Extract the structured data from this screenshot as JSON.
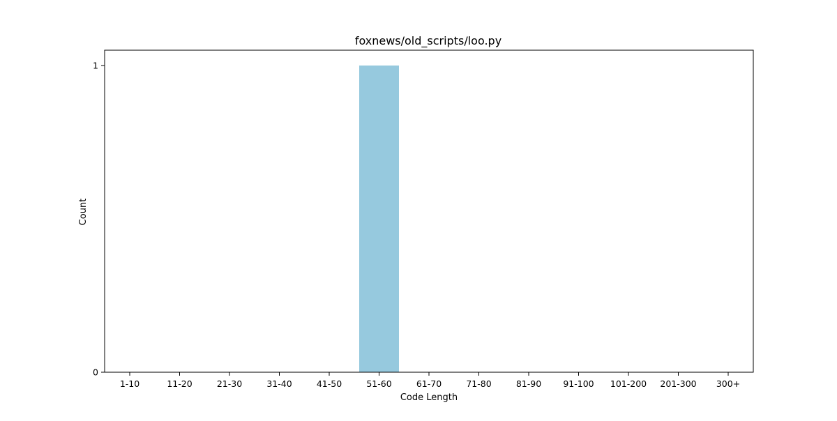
{
  "chart_data": {
    "type": "bar",
    "title": "foxnews/old_scripts/loo.py",
    "xlabel": "Code Length",
    "ylabel": "Count",
    "categories": [
      "1-10",
      "11-20",
      "21-30",
      "31-40",
      "41-50",
      "51-60",
      "61-70",
      "71-80",
      "81-90",
      "91-100",
      "101-200",
      "201-300",
      "300+"
    ],
    "values": [
      0,
      0,
      0,
      0,
      0,
      1,
      0,
      0,
      0,
      0,
      0,
      0,
      0
    ],
    "yticks": [
      0,
      1
    ],
    "ylim": [
      0,
      1.05
    ],
    "grid": false,
    "legend": "none",
    "bar_color": "#96c9de"
  }
}
